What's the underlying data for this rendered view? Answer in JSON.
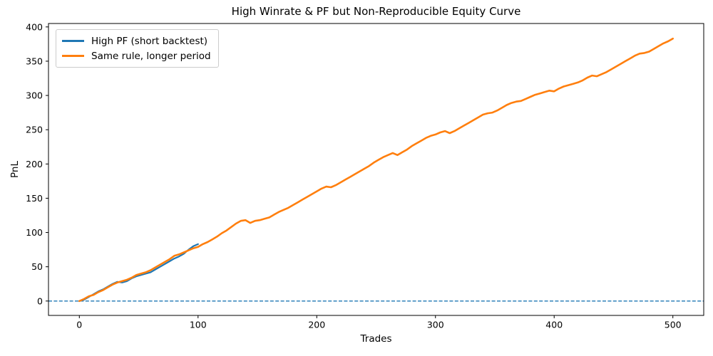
{
  "chart_data": {
    "type": "line",
    "title": "High Winrate & PF but Non-Reproducible Equity Curve",
    "xlabel": "Trades",
    "ylabel": "PnL",
    "xlim": [
      -26,
      526
    ],
    "ylim": [
      -21,
      405
    ],
    "x_ticks": [
      0,
      100,
      200,
      300,
      400,
      500
    ],
    "y_ticks": [
      0,
      50,
      100,
      150,
      200,
      250,
      300,
      350,
      400
    ],
    "grid": false,
    "legend_position": "upper left",
    "zero_line": {
      "y": 0,
      "style": "dashed",
      "color": "#1f77b4",
      "width": 1.3
    },
    "series": [
      {
        "name": "High PF (short backtest)",
        "color": "#1f77b4",
        "linewidth": 2.2,
        "x": [
          0,
          4,
          8,
          12,
          16,
          20,
          24,
          28,
          32,
          36,
          40,
          44,
          48,
          52,
          56,
          60,
          64,
          68,
          72,
          76,
          80,
          84,
          88,
          92,
          96,
          100
        ],
        "y": [
          0,
          2,
          6,
          10,
          14,
          17,
          21,
          25,
          28,
          27,
          29,
          33,
          36,
          38,
          40,
          42,
          46,
          50,
          54,
          58,
          62,
          65,
          69,
          75,
          80,
          83
        ]
      },
      {
        "name": "Same rule, longer period",
        "color": "#ff7f0e",
        "linewidth": 2.6,
        "x": [
          0,
          4,
          8,
          12,
          16,
          20,
          24,
          28,
          32,
          36,
          40,
          44,
          48,
          52,
          56,
          60,
          64,
          68,
          72,
          76,
          80,
          84,
          88,
          92,
          96,
          100,
          104,
          108,
          112,
          116,
          120,
          124,
          128,
          132,
          136,
          140,
          144,
          148,
          152,
          156,
          160,
          164,
          168,
          172,
          176,
          180,
          184,
          188,
          192,
          196,
          200,
          204,
          208,
          212,
          216,
          220,
          224,
          228,
          232,
          236,
          240,
          244,
          248,
          252,
          256,
          260,
          264,
          268,
          272,
          276,
          280,
          284,
          288,
          292,
          296,
          300,
          304,
          308,
          312,
          316,
          320,
          324,
          328,
          332,
          336,
          340,
          344,
          348,
          352,
          356,
          360,
          364,
          368,
          372,
          376,
          380,
          384,
          388,
          392,
          396,
          400,
          404,
          408,
          412,
          416,
          420,
          424,
          428,
          432,
          436,
          440,
          444,
          448,
          452,
          456,
          460,
          464,
          468,
          472,
          476,
          480,
          484,
          488,
          492,
          496,
          500
        ],
        "y": [
          0,
          3,
          7,
          9,
          13,
          16,
          20,
          24,
          27,
          29,
          31,
          34,
          38,
          40,
          42,
          45,
          49,
          53,
          57,
          61,
          66,
          68,
          71,
          74,
          77,
          79,
          83,
          86,
          90,
          94,
          99,
          103,
          108,
          113,
          117,
          118,
          114,
          117,
          118,
          120,
          122,
          126,
          130,
          133,
          136,
          140,
          144,
          148,
          152,
          156,
          160,
          164,
          167,
          166,
          169,
          173,
          177,
          181,
          185,
          189,
          193,
          197,
          202,
          206,
          210,
          213,
          216,
          213,
          217,
          221,
          226,
          230,
          234,
          238,
          241,
          243,
          246,
          248,
          245,
          248,
          252,
          256,
          260,
          264,
          268,
          272,
          274,
          275,
          278,
          282,
          286,
          289,
          291,
          292,
          295,
          298,
          301,
          303,
          305,
          307,
          306,
          310,
          313,
          315,
          317,
          319,
          322,
          326,
          329,
          328,
          331,
          334,
          338,
          342,
          346,
          350,
          354,
          358,
          361,
          362,
          364,
          368,
          372,
          376,
          379,
          383
        ]
      }
    ],
    "colors": {
      "background": "#ffffff",
      "text": "#000000",
      "spine": "#000000",
      "legend_border": "#cccccc"
    }
  }
}
